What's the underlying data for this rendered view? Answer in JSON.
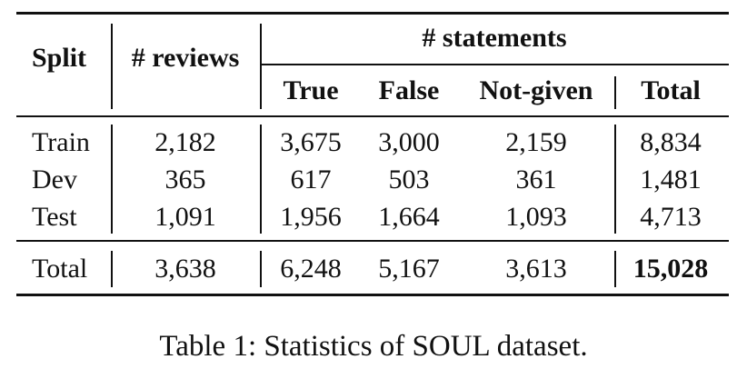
{
  "table": {
    "headers": {
      "split": "Split",
      "reviews": "# reviews",
      "statements": "# statements",
      "true": "True",
      "false": "False",
      "not_given": "Not-given",
      "total": "Total"
    },
    "rows": [
      {
        "split": "Train",
        "reviews": "2,182",
        "true": "3,675",
        "false": "3,000",
        "not_given": "2,159",
        "total": "8,834"
      },
      {
        "split": "Dev",
        "reviews": "365",
        "true": "617",
        "false": "503",
        "not_given": "361",
        "total": "1,481"
      },
      {
        "split": "Test",
        "reviews": "1,091",
        "true": "1,956",
        "false": "1,664",
        "not_given": "1,093",
        "total": "4,713"
      }
    ],
    "total_row": {
      "split": "Total",
      "reviews": "3,638",
      "true": "6,248",
      "false": "5,167",
      "not_given": "3,613",
      "total": "15,028"
    }
  },
  "caption": "Table 1: Statistics of SOUL dataset."
}
